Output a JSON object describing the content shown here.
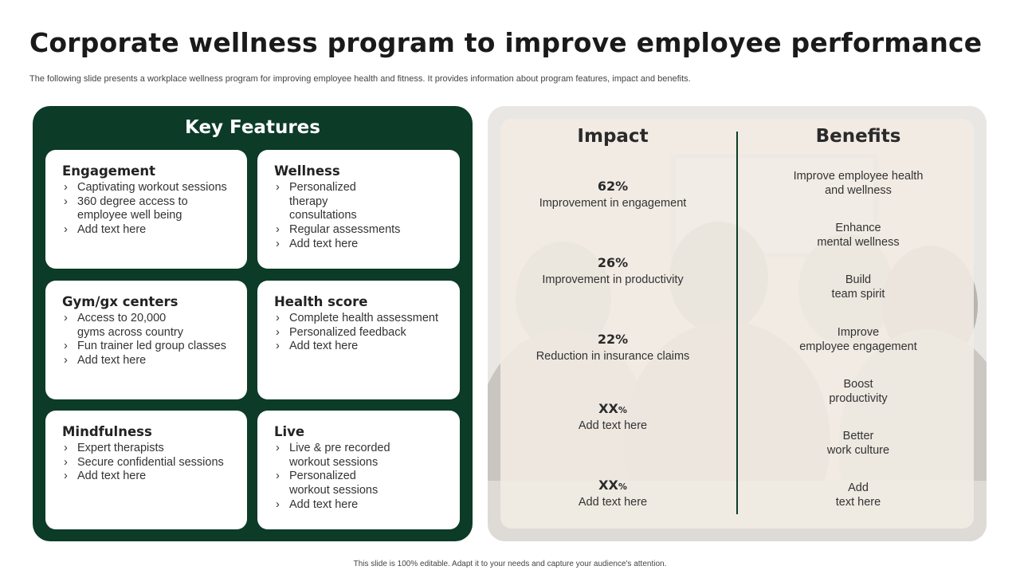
{
  "title": "Corporate wellness program to improve employee performance",
  "subtitle": "The following slide presents a workplace wellness program for improving employee health and fitness. It provides information about program features, impact and benefits.",
  "features": {
    "heading": "Key Features",
    "cards": [
      {
        "title": "Engagement",
        "items": [
          "Captivating workout sessions",
          "360 degree access to employee well being",
          "Add text here"
        ]
      },
      {
        "title": "Wellness",
        "items": [
          "Personalized therapy consultations",
          "Regular assessments",
          "Add text here"
        ]
      },
      {
        "title": "Gym/gx centers",
        "items": [
          "Access to 20,000 gyms across country",
          "Fun trainer led group classes",
          "Add text here"
        ]
      },
      {
        "title": "Health score",
        "items": [
          "Complete health assessment",
          "Personalized feedback",
          "Add text here"
        ]
      },
      {
        "title": "Mindfulness",
        "items": [
          "Expert therapists",
          "Secure confidential sessions",
          "Add text here"
        ]
      },
      {
        "title": "Live",
        "items": [
          "Live & pre recorded workout sessions",
          "Personalized workout sessions",
          "Add text here"
        ]
      }
    ]
  },
  "impact": {
    "heading": "Impact",
    "items": [
      {
        "value": "62",
        "unit": "%",
        "label": "Improvement in engagement"
      },
      {
        "value": "26",
        "unit": "%",
        "label": "Improvement in productivity"
      },
      {
        "value": "22",
        "unit": "%",
        "label": "Reduction in insurance claims"
      },
      {
        "value": "XX",
        "unit": "%",
        "label": "Add text here"
      },
      {
        "value": "XX",
        "unit": "%",
        "label": "Add text here"
      }
    ]
  },
  "benefits": {
    "heading": "Benefits",
    "items": [
      {
        "line1": "Improve employee health",
        "line2": "and wellness"
      },
      {
        "line1": "Enhance",
        "line2": "mental wellness"
      },
      {
        "line1": "Build",
        "line2": "team spirit"
      },
      {
        "line1": "Improve",
        "line2": "employee engagement"
      },
      {
        "line1": "Boost",
        "line2": "productivity"
      },
      {
        "line1": "Better",
        "line2": "work culture"
      },
      {
        "line1": "Add",
        "line2": "text here"
      }
    ]
  },
  "footer": "This slide is 100% editable. Adapt it to your needs and capture your audience's attention.",
  "colors": {
    "brand_green": "#0c3b28",
    "panel_beige": "#f1ece4",
    "card_white": "#ffffff"
  }
}
